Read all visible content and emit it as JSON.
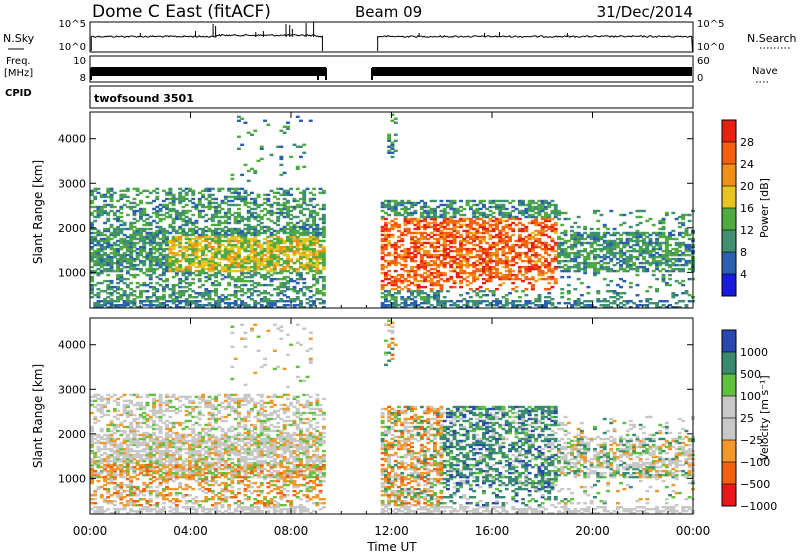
{
  "header": {
    "station": "Dome C East (fitACF)",
    "beam": "Beam 09",
    "date": "31/Dec/2014"
  },
  "side_labels": {
    "nsky": "N.Sky",
    "freq_line1": "Freq.",
    "freq_line2": "[MHz]",
    "cpid": "CPID",
    "nsearch": "N.Search",
    "nave": "Nave"
  },
  "cpid_name": "twofsound 3501",
  "colors": {
    "power": [
      "#1a1adf",
      "#2a5fb0",
      "#3f8f70",
      "#4faa40",
      "#e8c420",
      "#f09018",
      "#f26010",
      "#e82010"
    ],
    "velocity": [
      "#e81818",
      "#f06010",
      "#f09828",
      "#c8c8c8",
      "#c8c8c8",
      "#60c040",
      "#3a8a70",
      "#2848b0"
    ]
  },
  "chart_data": [
    {
      "type": "line",
      "name": "noise-panel",
      "ylabel_left": "N.Sky",
      "ylabel_right": "N.Search",
      "left_ticks": [
        "10^5",
        "10^0"
      ],
      "right_ticks": [
        "10^5",
        "10^0"
      ],
      "data_gap_utc": [
        "09:20",
        "11:30"
      ]
    },
    {
      "type": "line",
      "name": "frequency-panel",
      "ylabel_left": "Freq. [MHz]",
      "ylabel_right": "Nave",
      "left_ticks": [
        "10",
        "8"
      ],
      "right_ticks": [
        "60",
        "0"
      ],
      "data_gap_utc": [
        "09:20",
        "11:30"
      ]
    },
    {
      "type": "heatmap",
      "name": "power-panel",
      "ylabel": "Slant Range [km]",
      "y_ticks": [
        1000,
        2000,
        3000,
        4000
      ],
      "ylim": [
        200,
        4600
      ],
      "xlim_hours": [
        0,
        24
      ],
      "colorbar_label": "Power [dB]",
      "colorbar_ticks": [
        "4",
        "8",
        "12",
        "16",
        "20",
        "24",
        "28"
      ],
      "data_gap_utc": [
        "09:20",
        "11:30"
      ]
    },
    {
      "type": "heatmap",
      "name": "velocity-panel",
      "ylabel": "Slant Range [km]",
      "y_ticks": [
        1000,
        2000,
        3000,
        4000
      ],
      "ylim": [
        200,
        4600
      ],
      "xlim_hours": [
        0,
        24
      ],
      "colorbar_label": "Velocity [m s⁻¹]",
      "colorbar_ticks": [
        "1000",
        "500",
        "100",
        "25",
        "−25",
        "−100",
        "−500",
        "−1000"
      ],
      "data_gap_utc": [
        "09:20",
        "11:30"
      ]
    }
  ],
  "x_axis": {
    "ticks": [
      "00:00",
      "04:00",
      "08:00",
      "12:00",
      "16:00",
      "20:00",
      "00:00"
    ],
    "label": "Time UT"
  }
}
